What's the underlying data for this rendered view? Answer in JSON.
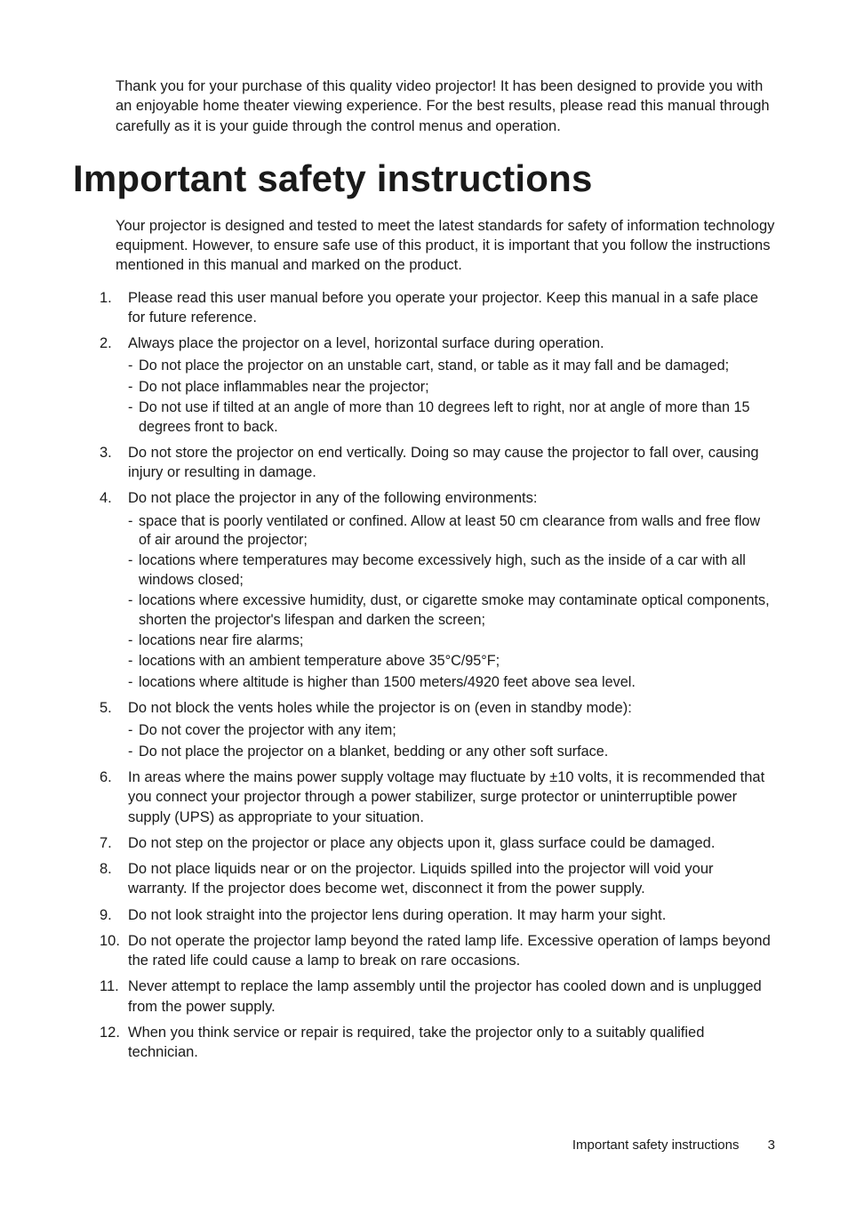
{
  "intro": "Thank you for your purchase of this quality video projector! It has been designed to provide you with an enjoyable home theater viewing experience. For the best results, please read this manual through carefully as it is your guide through the control menus and operation.",
  "title": "Important safety instructions",
  "lead": "Your projector is designed and tested to meet the latest standards for safety of information technology equipment. However, to ensure safe use of this product, it is important that you follow the instructions mentioned in this manual and marked on the product.",
  "items": [
    {
      "num": "1.",
      "text": "Please read this user manual before you operate your projector. Keep this manual in a safe place for future reference."
    },
    {
      "num": "2.",
      "text": "Always place the projector on a level, horizontal surface during operation.",
      "sub": [
        "Do not place the projector on an unstable cart, stand, or table as it may fall and be damaged;",
        "Do not place inflammables near the projector;",
        "Do not use if tilted at an angle of more than 10 degrees left to right, nor at angle of more than 15 degrees front to back."
      ]
    },
    {
      "num": "3.",
      "text": "Do not store the projector on end vertically. Doing so may cause the projector to fall over, causing injury or resulting in damage."
    },
    {
      "num": "4.",
      "text": "Do not place the projector in any of the following environments:",
      "sub": [
        "space that is poorly ventilated or confined. Allow at least 50 cm clearance from walls and free flow of air around the projector;",
        "locations where temperatures may become excessively high, such as the inside of a car with all windows closed;",
        "locations where excessive humidity, dust, or cigarette smoke may contaminate optical components, shorten the projector's lifespan and darken the screen;",
        "locations near fire alarms;",
        "locations with an ambient temperature above 35°C/95°F;",
        "locations where altitude is higher than 1500 meters/4920 feet above sea level."
      ]
    },
    {
      "num": "5.",
      "text": "Do not block the vents holes while the projector is on (even in standby mode):",
      "sub": [
        "Do not cover the projector with any item;",
        "Do not place the projector on a blanket, bedding or any other soft surface."
      ]
    },
    {
      "num": "6.",
      "text": "In areas where the mains power supply voltage may fluctuate by ±10 volts, it is recommended that you connect your projector through a power stabilizer, surge protector or uninterruptible power supply (UPS) as appropriate to your situation."
    },
    {
      "num": "7.",
      "text": "Do not step on the projector or place any objects upon it, glass surface could be damaged."
    },
    {
      "num": "8.",
      "text": "Do not place liquids near or on the projector. Liquids spilled into the projector will void your warranty. If the projector does become wet, disconnect it from the power supply."
    },
    {
      "num": "9.",
      "text": "Do not look straight into the projector lens during operation. It may harm your sight."
    },
    {
      "num": "10.",
      "text": "Do not operate the projector lamp beyond the rated lamp life. Excessive operation of lamps beyond the rated life could cause a lamp to break on rare occasions."
    },
    {
      "num": "11.",
      "text": "Never attempt to replace the lamp assembly until the projector has cooled down and is unplugged from the power supply."
    },
    {
      "num": "12.",
      "text": "When you think service or repair is required, take the projector only to a suitably qualified technician."
    }
  ],
  "footer_label": "Important safety instructions",
  "page_number": "3"
}
